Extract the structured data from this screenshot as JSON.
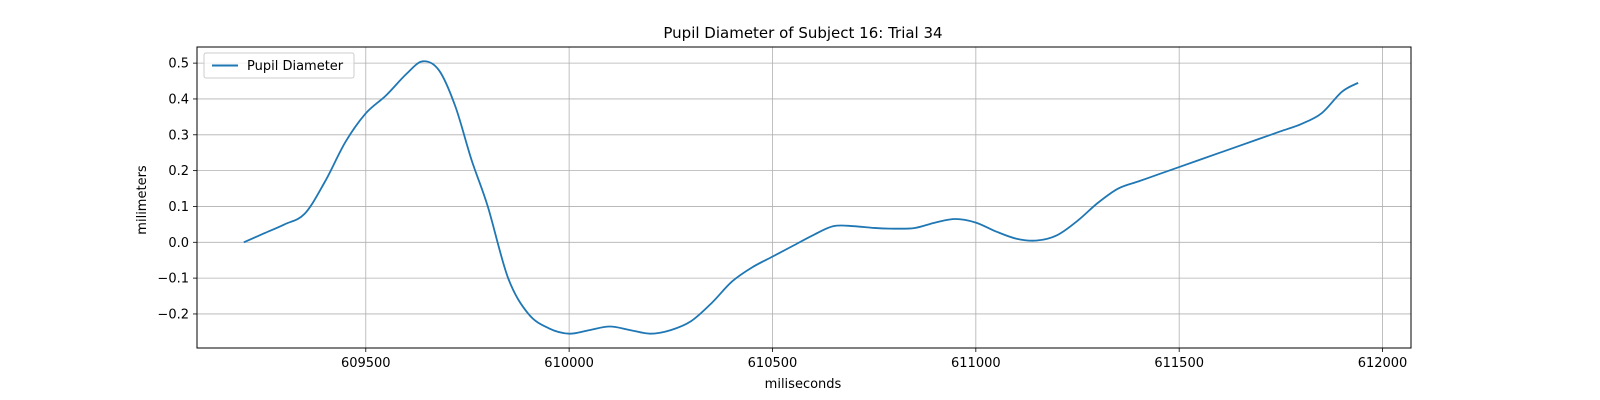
{
  "chart_data": {
    "type": "line",
    "title": "Pupil Diameter of Subject 16: Trial 34",
    "xlabel": "miliseconds",
    "ylabel": "milimeters",
    "xlim": [
      609085,
      612070
    ],
    "ylim": [
      -0.295,
      0.545
    ],
    "xticks": [
      609500,
      610000,
      610500,
      611000,
      611500,
      612000
    ],
    "yticks": [
      -0.2,
      -0.1,
      0.0,
      0.1,
      0.2,
      0.3,
      0.4,
      0.5
    ],
    "grid": true,
    "legend_position": "top-left",
    "colors": {
      "series": "#1f77b4",
      "grid": "#b0b0b0",
      "axes": "#000000"
    },
    "series": [
      {
        "name": "Pupil Diameter",
        "x": [
          609200,
          609250,
          609300,
          609350,
          609400,
          609450,
          609500,
          609550,
          609600,
          609640,
          609680,
          609720,
          609760,
          609800,
          609850,
          609900,
          609950,
          610000,
          610050,
          610100,
          610150,
          610200,
          610250,
          610300,
          610350,
          610400,
          610450,
          610500,
          610550,
          610600,
          610650,
          610700,
          610750,
          610800,
          610850,
          610900,
          610950,
          611000,
          611050,
          611100,
          611150,
          611200,
          611250,
          611300,
          611350,
          611400,
          611450,
          611500,
          611550,
          611600,
          611650,
          611700,
          611750,
          611800,
          611850,
          611900,
          611940
        ],
        "y": [
          0.0,
          0.025,
          0.05,
          0.08,
          0.17,
          0.28,
          0.36,
          0.41,
          0.47,
          0.505,
          0.48,
          0.38,
          0.23,
          0.1,
          -0.1,
          -0.2,
          -0.24,
          -0.255,
          -0.245,
          -0.235,
          -0.245,
          -0.255,
          -0.245,
          -0.22,
          -0.17,
          -0.11,
          -0.07,
          -0.04,
          -0.01,
          0.02,
          0.045,
          0.045,
          0.04,
          0.038,
          0.04,
          0.055,
          0.065,
          0.055,
          0.03,
          0.01,
          0.005,
          0.02,
          0.06,
          0.11,
          0.15,
          0.17,
          0.19,
          0.21,
          0.23,
          0.25,
          0.27,
          0.29,
          0.31,
          0.33,
          0.36,
          0.42,
          0.445
        ]
      }
    ]
  }
}
